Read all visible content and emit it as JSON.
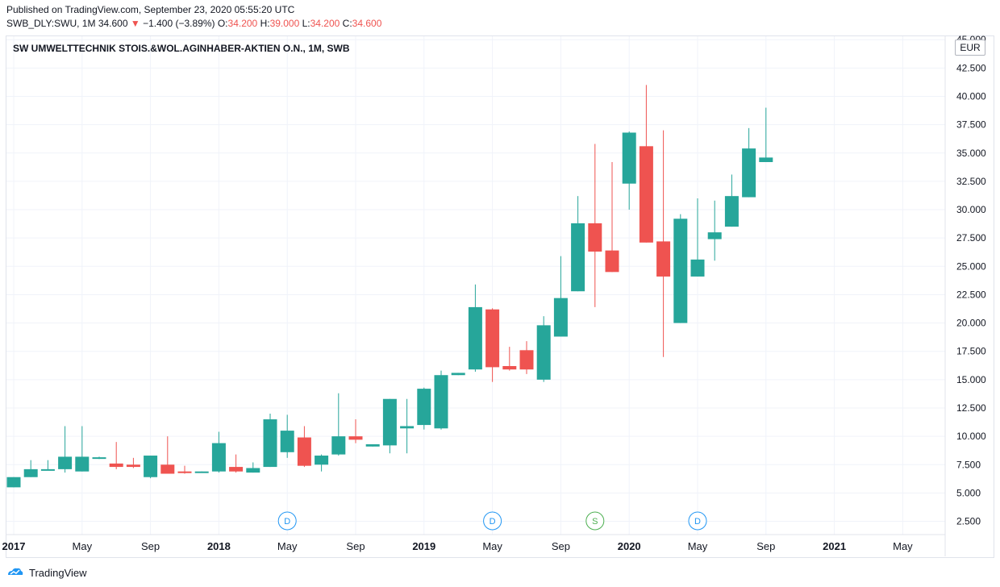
{
  "header": {
    "published": "Published on TradingView.com, September 23, 2020 05:55:20 UTC",
    "symbol": "SWB_DLY:SWU, 1M",
    "last": "34.600",
    "arrow": "▼",
    "change": "−1.400 (−3.89%)",
    "o_label": "O:",
    "o_value": "34.200",
    "h_label": "H:",
    "h_value": "39.000",
    "l_label": "L:",
    "l_value": "34.200",
    "c_label": "C:",
    "c_value": "34.600"
  },
  "legend_title": "SW UMWELTTECHNIK STOIS.&WOL.AGINHABER-AKTIEN O.N., 1M, SWB",
  "currency": "EUR",
  "footer": {
    "brand": "TradingView"
  },
  "colors": {
    "up": "#26a69a",
    "down": "#ef5350",
    "grid": "#f0f3fa",
    "axis_text": "#131722"
  },
  "chart_data": {
    "type": "candlestick",
    "y_axis": {
      "position": "right",
      "min": 1.4,
      "max": 45.3,
      "ticks": [
        "45.000",
        "42.500",
        "40.000",
        "37.500",
        "35.000",
        "32.500",
        "30.000",
        "27.500",
        "25.000",
        "22.500",
        "20.000",
        "17.500",
        "15.000",
        "12.500",
        "10.000",
        "7.500",
        "5.000",
        "2.500"
      ]
    },
    "x_labels": [
      {
        "label": "2017",
        "i": 0,
        "bold": true
      },
      {
        "label": "May",
        "i": 4
      },
      {
        "label": "Sep",
        "i": 8
      },
      {
        "label": "2018",
        "i": 12,
        "bold": true
      },
      {
        "label": "May",
        "i": 16
      },
      {
        "label": "Sep",
        "i": 20
      },
      {
        "label": "2019",
        "i": 24,
        "bold": true
      },
      {
        "label": "May",
        "i": 28
      },
      {
        "label": "Sep",
        "i": 32
      },
      {
        "label": "2020",
        "i": 36,
        "bold": true
      },
      {
        "label": "May",
        "i": 40
      },
      {
        "label": "Sep",
        "i": 44
      },
      {
        "label": "2021",
        "i": 48,
        "bold": true
      },
      {
        "label": "May",
        "i": 52
      }
    ],
    "events": [
      {
        "label": "D",
        "i": 16,
        "kind": "dividend"
      },
      {
        "label": "D",
        "i": 28,
        "kind": "dividend"
      },
      {
        "label": "S",
        "i": 34,
        "kind": "split"
      },
      {
        "label": "D",
        "i": 40,
        "kind": "dividend"
      }
    ],
    "candles": [
      {
        "o": 5.5,
        "h": 6.4,
        "l": 5.5,
        "c": 6.4
      },
      {
        "o": 6.4,
        "h": 7.9,
        "l": 6.4,
        "c": 7.1
      },
      {
        "o": 7.1,
        "h": 7.9,
        "l": 7.0,
        "c": 7.1
      },
      {
        "o": 7.1,
        "h": 10.9,
        "l": 6.8,
        "c": 8.2
      },
      {
        "o": 6.9,
        "h": 10.9,
        "l": 6.9,
        "c": 8.2
      },
      {
        "o": 8.1,
        "h": 8.2,
        "l": 8.0,
        "c": 8.15
      },
      {
        "o": 7.6,
        "h": 9.5,
        "l": 7.1,
        "c": 7.3
      },
      {
        "o": 7.5,
        "h": 8.1,
        "l": 7.2,
        "c": 7.3
      },
      {
        "o": 6.4,
        "h": 8.3,
        "l": 6.3,
        "c": 8.3
      },
      {
        "o": 7.5,
        "h": 10.0,
        "l": 6.7,
        "c": 6.7
      },
      {
        "o": 6.9,
        "h": 7.4,
        "l": 6.7,
        "c": 6.8
      },
      {
        "o": 6.9,
        "h": 6.9,
        "l": 6.8,
        "c": 6.9
      },
      {
        "o": 6.9,
        "h": 10.4,
        "l": 6.8,
        "c": 9.4
      },
      {
        "o": 7.3,
        "h": 8.4,
        "l": 6.8,
        "c": 6.9
      },
      {
        "o": 6.8,
        "h": 7.7,
        "l": 6.8,
        "c": 7.2
      },
      {
        "o": 7.3,
        "h": 12.0,
        "l": 7.3,
        "c": 11.5
      },
      {
        "o": 8.6,
        "h": 11.9,
        "l": 8.1,
        "c": 10.5
      },
      {
        "o": 9.9,
        "h": 10.9,
        "l": 7.3,
        "c": 7.4
      },
      {
        "o": 7.5,
        "h": 8.4,
        "l": 6.9,
        "c": 8.3
      },
      {
        "o": 8.4,
        "h": 13.8,
        "l": 8.3,
        "c": 10.0
      },
      {
        "o": 10.0,
        "h": 11.5,
        "l": 9.4,
        "c": 9.7
      },
      {
        "o": 9.1,
        "h": 9.3,
        "l": 9.1,
        "c": 9.3
      },
      {
        "o": 9.2,
        "h": 13.3,
        "l": 8.5,
        "c": 13.3
      },
      {
        "o": 10.7,
        "h": 13.3,
        "l": 8.5,
        "c": 10.9
      },
      {
        "o": 11.0,
        "h": 14.3,
        "l": 10.6,
        "c": 14.2
      },
      {
        "o": 10.7,
        "h": 15.8,
        "l": 10.6,
        "c": 15.4
      },
      {
        "o": 15.4,
        "h": 15.6,
        "l": 15.4,
        "c": 15.6
      },
      {
        "o": 15.9,
        "h": 23.4,
        "l": 15.7,
        "c": 21.4
      },
      {
        "o": 21.2,
        "h": 21.3,
        "l": 14.8,
        "c": 16.1
      },
      {
        "o": 16.2,
        "h": 17.9,
        "l": 15.8,
        "c": 15.9
      },
      {
        "o": 17.6,
        "h": 18.4,
        "l": 15.5,
        "c": 15.9
      },
      {
        "o": 15.0,
        "h": 20.6,
        "l": 14.8,
        "c": 19.8
      },
      {
        "o": 18.8,
        "h": 25.9,
        "l": 18.8,
        "c": 22.2
      },
      {
        "o": 22.8,
        "h": 31.2,
        "l": 22.8,
        "c": 28.8
      },
      {
        "o": 28.8,
        "h": 35.8,
        "l": 21.4,
        "c": 26.3
      },
      {
        "o": 26.4,
        "h": 34.2,
        "l": 24.5,
        "c": 24.5
      },
      {
        "o": 32.3,
        "h": 36.9,
        "l": 30.0,
        "c": 36.8
      },
      {
        "o": 35.6,
        "h": 41.0,
        "l": 27.1,
        "c": 27.1
      },
      {
        "o": 27.2,
        "h": 37.0,
        "l": 17.0,
        "c": 24.1
      },
      {
        "o": 20.0,
        "h": 29.6,
        "l": 20.0,
        "c": 29.2
      },
      {
        "o": 24.1,
        "h": 31.0,
        "l": 24.1,
        "c": 25.6
      },
      {
        "o": 27.4,
        "h": 30.8,
        "l": 25.5,
        "c": 28.0
      },
      {
        "o": 28.5,
        "h": 33.1,
        "l": 28.5,
        "c": 31.2
      },
      {
        "o": 31.1,
        "h": 37.2,
        "l": 31.1,
        "c": 35.4
      },
      {
        "o": 34.2,
        "h": 39.0,
        "l": 34.2,
        "c": 34.6
      }
    ]
  }
}
